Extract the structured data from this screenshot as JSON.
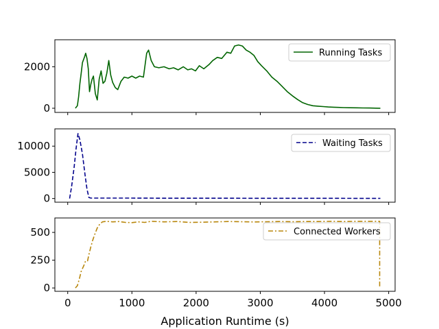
{
  "chart_data": [
    {
      "type": "line",
      "xlabel": "",
      "ylabel": "",
      "xlim": [
        -200,
        5100
      ],
      "ylim": [
        -200,
        3300
      ],
      "yticks": [
        0,
        2000
      ],
      "ytick_labels": [
        "0",
        "2000"
      ],
      "grid": false,
      "legend_position": "top-right",
      "series": [
        {
          "name": "Running Tasks",
          "color": "#006400",
          "style": "solid",
          "points": [
            [
              120,
              0
            ],
            [
              150,
              120
            ],
            [
              170,
              550
            ],
            [
              190,
              1200
            ],
            [
              210,
              1700
            ],
            [
              230,
              2200
            ],
            [
              260,
              2450
            ],
            [
              280,
              2650
            ],
            [
              300,
              2400
            ],
            [
              320,
              1900
            ],
            [
              340,
              800
            ],
            [
              360,
              1150
            ],
            [
              380,
              1400
            ],
            [
              400,
              1550
            ],
            [
              430,
              700
            ],
            [
              460,
              400
            ],
            [
              490,
              1400
            ],
            [
              520,
              1800
            ],
            [
              550,
              1200
            ],
            [
              580,
              1300
            ],
            [
              610,
              1700
            ],
            [
              640,
              2300
            ],
            [
              670,
              1600
            ],
            [
              700,
              1250
            ],
            [
              740,
              1000
            ],
            [
              780,
              900
            ],
            [
              830,
              1300
            ],
            [
              880,
              1500
            ],
            [
              940,
              1450
            ],
            [
              1000,
              1550
            ],
            [
              1060,
              1450
            ],
            [
              1120,
              1550
            ],
            [
              1180,
              1500
            ],
            [
              1230,
              2650
            ],
            [
              1260,
              2800
            ],
            [
              1300,
              2300
            ],
            [
              1350,
              2000
            ],
            [
              1420,
              1950
            ],
            [
              1500,
              2000
            ],
            [
              1580,
              1900
            ],
            [
              1650,
              1950
            ],
            [
              1720,
              1850
            ],
            [
              1800,
              2000
            ],
            [
              1870,
              1850
            ],
            [
              1930,
              1900
            ],
            [
              1990,
              1800
            ],
            [
              2050,
              2050
            ],
            [
              2120,
              1900
            ],
            [
              2200,
              2100
            ],
            [
              2260,
              2300
            ],
            [
              2330,
              2450
            ],
            [
              2400,
              2400
            ],
            [
              2480,
              2700
            ],
            [
              2540,
              2650
            ],
            [
              2600,
              3000
            ],
            [
              2660,
              3050
            ],
            [
              2720,
              3000
            ],
            [
              2780,
              2800
            ],
            [
              2840,
              2700
            ],
            [
              2900,
              2550
            ],
            [
              2960,
              2250
            ],
            [
              3020,
              2050
            ],
            [
              3100,
              1800
            ],
            [
              3180,
              1500
            ],
            [
              3260,
              1300
            ],
            [
              3340,
              1050
            ],
            [
              3420,
              800
            ],
            [
              3500,
              600
            ],
            [
              3580,
              420
            ],
            [
              3660,
              270
            ],
            [
              3740,
              180
            ],
            [
              3820,
              120
            ],
            [
              3900,
              100
            ],
            [
              3980,
              80
            ],
            [
              4060,
              60
            ],
            [
              4140,
              50
            ],
            [
              4220,
              40
            ],
            [
              4300,
              30
            ],
            [
              4400,
              25
            ],
            [
              4500,
              20
            ],
            [
              4600,
              15
            ],
            [
              4700,
              10
            ],
            [
              4800,
              5
            ],
            [
              4870,
              0
            ]
          ]
        }
      ]
    },
    {
      "type": "line",
      "xlabel": "",
      "ylabel": "",
      "xlim": [
        -200,
        5100
      ],
      "ylim": [
        -700,
        13300
      ],
      "yticks": [
        0,
        5000,
        10000
      ],
      "ytick_labels": [
        "0",
        "5000",
        "10000"
      ],
      "grid": false,
      "legend_position": "top-right",
      "series": [
        {
          "name": "Waiting Tasks",
          "color": "#00008B",
          "style": "dashed",
          "points": [
            [
              30,
              0
            ],
            [
              60,
              2200
            ],
            [
              100,
              6000
            ],
            [
              130,
              9500
            ],
            [
              160,
              12400
            ],
            [
              190,
              11200
            ],
            [
              230,
              8500
            ],
            [
              270,
              4500
            ],
            [
              300,
              1800
            ],
            [
              330,
              200
            ],
            [
              360,
              80
            ],
            [
              500,
              80
            ],
            [
              1000,
              80
            ],
            [
              1500,
              60
            ],
            [
              2000,
              60
            ],
            [
              2500,
              60
            ],
            [
              3000,
              40
            ],
            [
              3500,
              40
            ],
            [
              4000,
              40
            ],
            [
              4500,
              30
            ],
            [
              4870,
              30
            ]
          ]
        }
      ]
    },
    {
      "type": "line",
      "xlabel": "Application Runtime (s)",
      "ylabel": "",
      "xlim": [
        -200,
        5100
      ],
      "ylim": [
        -30,
        630
      ],
      "xticks": [
        0,
        1000,
        2000,
        3000,
        4000,
        5000
      ],
      "xtick_labels": [
        "0",
        "1000",
        "2000",
        "3000",
        "4000",
        "5000"
      ],
      "yticks": [
        0,
        250,
        500
      ],
      "ytick_labels": [
        "0",
        "250",
        "500"
      ],
      "grid": false,
      "legend_position": "top-right",
      "series": [
        {
          "name": "Connected Workers",
          "color": "#B8860B",
          "style": "dashdot",
          "points": [
            [
              120,
              0
            ],
            [
              150,
              20
            ],
            [
              180,
              80
            ],
            [
              210,
              150
            ],
            [
              250,
              200
            ],
            [
              280,
              245
            ],
            [
              310,
              245
            ],
            [
              330,
              300
            ],
            [
              360,
              370
            ],
            [
              390,
              430
            ],
            [
              420,
              480
            ],
            [
              460,
              540
            ],
            [
              500,
              575
            ],
            [
              540,
              595
            ],
            [
              600,
              600
            ],
            [
              700,
              595
            ],
            [
              800,
              598
            ],
            [
              900,
              590
            ],
            [
              1000,
              588
            ],
            [
              1100,
              595
            ],
            [
              1200,
              590
            ],
            [
              1300,
              600
            ],
            [
              1500,
              595
            ],
            [
              1700,
              598
            ],
            [
              1900,
              590
            ],
            [
              2100,
              592
            ],
            [
              2300,
              595
            ],
            [
              2500,
              598
            ],
            [
              2700,
              596
            ],
            [
              2900,
              594
            ],
            [
              3100,
              596
            ],
            [
              3300,
              598
            ],
            [
              3500,
              596
            ],
            [
              3700,
              598
            ],
            [
              3900,
              598
            ],
            [
              4100,
              600
            ],
            [
              4300,
              598
            ],
            [
              4500,
              600
            ],
            [
              4700,
              600
            ],
            [
              4860,
              600
            ],
            [
              4860,
              0
            ]
          ]
        }
      ]
    }
  ]
}
